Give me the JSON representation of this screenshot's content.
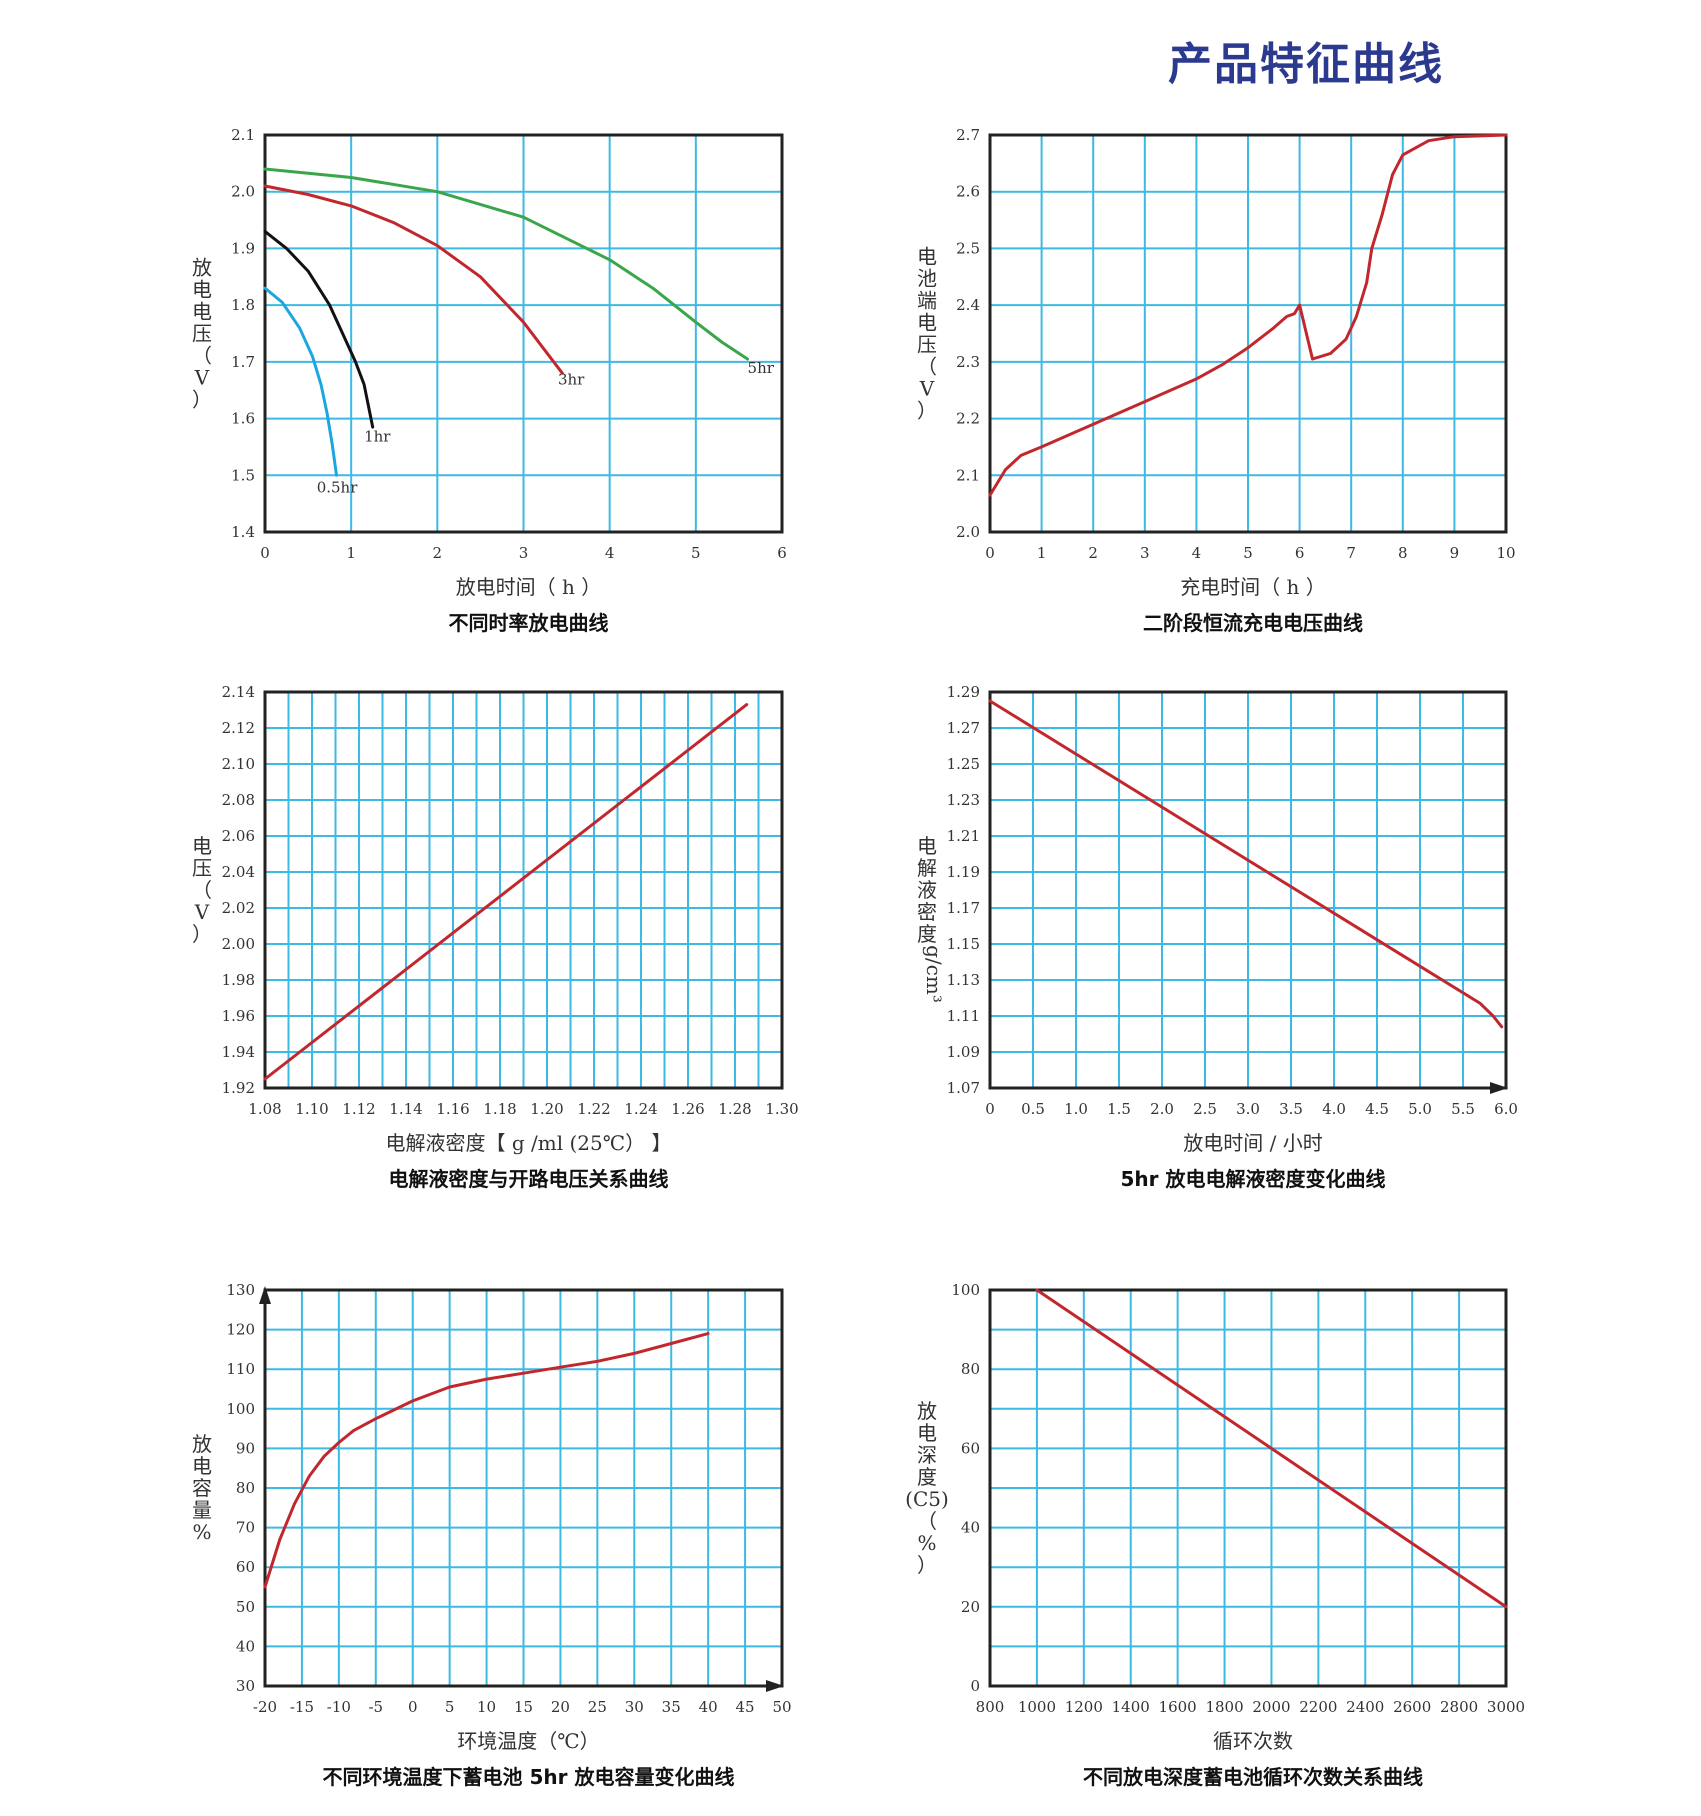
{
  "page_title": "产品特征曲线",
  "colors": {
    "title": "#2b3a8f",
    "grid": "#3db9e5",
    "frame": "#222222",
    "red": "#c1272d",
    "green": "#3aa64a",
    "black": "#111111",
    "cyan": "#1ba6e0"
  },
  "chart_data": [
    {
      "type": "line",
      "caption": "不同时率放电曲线",
      "xlabel": "放电时间（ h ）",
      "ylabel": [
        "放",
        "电",
        "电",
        "压",
        "（",
        "V",
        "）"
      ],
      "xlim": [
        0,
        6
      ],
      "ylim": [
        1.4,
        2.1
      ],
      "xticks": [
        0,
        1,
        2,
        3,
        4,
        5,
        6
      ],
      "xtick_labels": [
        "0",
        "1",
        "2",
        "3",
        "4",
        "5",
        "6"
      ],
      "yticks": [
        1.4,
        1.5,
        1.6,
        1.7,
        1.8,
        1.9,
        2.0,
        2.1
      ],
      "ytick_labels": [
        "1.4",
        "1.5",
        "1.6",
        "1.7",
        "1.8",
        "1.9",
        "2.0",
        "2.1"
      ],
      "series": [
        {
          "name": "5hr",
          "color": "#3aa64a",
          "label_at": [
            5.6,
            1.68
          ],
          "points": [
            [
              0,
              2.04
            ],
            [
              1,
              2.025
            ],
            [
              2,
              2.0
            ],
            [
              3,
              1.955
            ],
            [
              4,
              1.88
            ],
            [
              4.5,
              1.83
            ],
            [
              5,
              1.77
            ],
            [
              5.3,
              1.735
            ],
            [
              5.6,
              1.705
            ]
          ]
        },
        {
          "name": "3hr",
          "color": "#c1272d",
          "label_at": [
            3.4,
            1.66
          ],
          "points": [
            [
              0,
              2.01
            ],
            [
              0.5,
              1.995
            ],
            [
              1,
              1.975
            ],
            [
              1.5,
              1.945
            ],
            [
              2,
              1.905
            ],
            [
              2.5,
              1.85
            ],
            [
              3,
              1.77
            ],
            [
              3.2,
              1.73
            ],
            [
              3.45,
              1.68
            ]
          ]
        },
        {
          "name": "1hr",
          "color": "#111111",
          "label_at": [
            1.15,
            1.56
          ],
          "points": [
            [
              0,
              1.93
            ],
            [
              0.25,
              1.9
            ],
            [
              0.5,
              1.86
            ],
            [
              0.75,
              1.8
            ],
            [
              0.9,
              1.75
            ],
            [
              1.05,
              1.7
            ],
            [
              1.15,
              1.66
            ],
            [
              1.25,
              1.585
            ]
          ]
        },
        {
          "name": "0.5hr",
          "color": "#1ba6e0",
          "label_at": [
            0.6,
            1.47
          ],
          "points": [
            [
              0,
              1.83
            ],
            [
              0.2,
              1.805
            ],
            [
              0.4,
              1.76
            ],
            [
              0.55,
              1.71
            ],
            [
              0.65,
              1.66
            ],
            [
              0.72,
              1.61
            ],
            [
              0.78,
              1.555
            ],
            [
              0.83,
              1.5
            ]
          ]
        }
      ]
    },
    {
      "type": "line",
      "caption": "二阶段恒流充电电压曲线",
      "xlabel": "充电时间（ h ）",
      "ylabel": [
        "电",
        "池",
        "端",
        "电",
        "压",
        "（",
        "V",
        "）"
      ],
      "xlim": [
        0,
        10
      ],
      "ylim": [
        2.0,
        2.7
      ],
      "xticks": [
        0,
        1,
        2,
        3,
        4,
        5,
        6,
        7,
        8,
        9,
        10
      ],
      "xtick_labels": [
        "0",
        "1",
        "2",
        "3",
        "4",
        "5",
        "6",
        "7",
        "8",
        "9",
        "10"
      ],
      "yticks": [
        2.0,
        2.1,
        2.2,
        2.3,
        2.4,
        2.5,
        2.6,
        2.7
      ],
      "ytick_labels": [
        "2.0",
        "2.1",
        "2.2",
        "2.3",
        "2.4",
        "2.5",
        "2.6",
        "2.7"
      ],
      "series": [
        {
          "name": "",
          "color": "#c1272d",
          "points": [
            [
              0,
              2.065
            ],
            [
              0.3,
              2.11
            ],
            [
              0.6,
              2.135
            ],
            [
              1,
              2.15
            ],
            [
              2,
              2.19
            ],
            [
              3,
              2.23
            ],
            [
              4,
              2.27
            ],
            [
              4.5,
              2.295
            ],
            [
              5,
              2.325
            ],
            [
              5.5,
              2.36
            ],
            [
              5.75,
              2.38
            ],
            [
              5.9,
              2.385
            ],
            [
              6.0,
              2.4
            ],
            [
              6.25,
              2.305
            ],
            [
              6.6,
              2.315
            ],
            [
              6.9,
              2.34
            ],
            [
              7.1,
              2.38
            ],
            [
              7.3,
              2.44
            ],
            [
              7.4,
              2.5
            ],
            [
              7.6,
              2.56
            ],
            [
              7.8,
              2.63
            ],
            [
              8,
              2.665
            ],
            [
              8.5,
              2.69
            ],
            [
              9,
              2.697
            ],
            [
              10,
              2.7
            ]
          ]
        }
      ]
    },
    {
      "type": "line",
      "caption": "电解液密度与开路电压关系曲线",
      "xlabel": "电解液密度【 g /ml (25℃） 】",
      "ylabel": [
        "电",
        "压",
        "（",
        "V",
        "）"
      ],
      "xlim": [
        1.08,
        1.3
      ],
      "ylim": [
        1.92,
        2.14
      ],
      "xticks": [
        1.08,
        1.1,
        1.12,
        1.14,
        1.16,
        1.18,
        1.2,
        1.22,
        1.24,
        1.26,
        1.28,
        1.3
      ],
      "xtick_labels": [
        "1.08",
        "1.10",
        "1.12",
        "1.14",
        "1.16",
        "1.18",
        "1.20",
        "1.22",
        "1.24",
        "1.26",
        "1.28",
        "1.30"
      ],
      "yticks": [
        1.92,
        1.94,
        1.96,
        1.98,
        2.0,
        2.02,
        2.04,
        2.06,
        2.08,
        2.1,
        2.12,
        2.14
      ],
      "ytick_labels": [
        "1.92",
        "1.94",
        "1.96",
        "1.98",
        "2.00",
        "2.02",
        "2.04",
        "2.06",
        "2.08",
        "2.10",
        "2.12",
        "2.14"
      ],
      "series": [
        {
          "name": "",
          "color": "#c1272d",
          "points": [
            [
              1.08,
              1.925
            ],
            [
              1.285,
              2.133
            ]
          ]
        }
      ]
    },
    {
      "type": "line",
      "caption": "5hr 放电电解液密度变化曲线",
      "xlabel": "放电时间 / 小时",
      "ylabel": [
        "电",
        "解",
        "液",
        "密",
        "度"
      ],
      "yunit": "g/cm³",
      "xlim": [
        0,
        6.0
      ],
      "ylim": [
        1.07,
        1.29
      ],
      "xticks": [
        0,
        0.5,
        1.0,
        1.5,
        2.0,
        2.5,
        3.0,
        3.5,
        4.0,
        4.5,
        5.0,
        5.5,
        6.0
      ],
      "xtick_labels": [
        "0",
        "0.5",
        "1.0",
        "1.5",
        "2.0",
        "2.5",
        "3.0",
        "3.5",
        "4.0",
        "4.5",
        "5.0",
        "5.5",
        "6.0"
      ],
      "yticks": [
        1.07,
        1.09,
        1.11,
        1.13,
        1.15,
        1.17,
        1.19,
        1.21,
        1.23,
        1.25,
        1.27,
        1.29
      ],
      "ytick_labels": [
        "1.07",
        "1.09",
        "1.11",
        "1.13",
        "1.15",
        "1.17",
        "1.19",
        "1.21",
        "1.23",
        "1.25",
        "1.27",
        "1.29"
      ],
      "series": [
        {
          "name": "",
          "color": "#c1272d",
          "points": [
            [
              0,
              1.285
            ],
            [
              5.7,
              1.117
            ],
            [
              5.85,
              1.11
            ],
            [
              5.95,
              1.104
            ]
          ]
        }
      ]
    },
    {
      "type": "line",
      "caption": "不同环境温度下蓄电池 5hr 放电容量变化曲线",
      "xlabel": "环境温度（℃）",
      "ylabel": [
        "放",
        "电",
        "容",
        "量",
        "%"
      ],
      "xlim": [
        -20,
        50
      ],
      "ylim": [
        30,
        130
      ],
      "xticks": [
        -20,
        -15,
        -10,
        -5,
        0,
        5,
        10,
        15,
        20,
        25,
        30,
        35,
        40,
        45,
        50
      ],
      "xtick_labels": [
        "-20",
        "-15",
        "-10",
        "-5",
        "0",
        "5",
        "10",
        "15",
        "20",
        "25",
        "30",
        "35",
        "40",
        "45",
        "50"
      ],
      "yticks": [
        30,
        40,
        50,
        60,
        70,
        80,
        90,
        100,
        110,
        120,
        130
      ],
      "ytick_labels": [
        "30",
        "40",
        "50",
        "60",
        "70",
        "80",
        "90",
        "100",
        "110",
        "120",
        "130"
      ],
      "series": [
        {
          "name": "",
          "color": "#c1272d",
          "points": [
            [
              -20,
              55
            ],
            [
              -18,
              67
            ],
            [
              -16,
              76
            ],
            [
              -14,
              83
            ],
            [
              -12,
              88
            ],
            [
              -10,
              91.5
            ],
            [
              -8,
              94.5
            ],
            [
              -5,
              97.5
            ],
            [
              0,
              102
            ],
            [
              5,
              105.5
            ],
            [
              10,
              107.5
            ],
            [
              15,
              109
            ],
            [
              20,
              110.5
            ],
            [
              25,
              112
            ],
            [
              30,
              114
            ],
            [
              35,
              116.5
            ],
            [
              40,
              119
            ]
          ]
        }
      ]
    },
    {
      "type": "line",
      "caption": "不同放电深度蓄电池循环次数关系曲线",
      "xlabel": "循环次数",
      "ylabel": [
        "放",
        "电",
        "深",
        "度",
        "(C5)",
        "（",
        "%",
        "）"
      ],
      "xlim": [
        800,
        3000
      ],
      "ylim": [
        0,
        100
      ],
      "xticks": [
        800,
        1000,
        1200,
        1400,
        1600,
        1800,
        2000,
        2200,
        2400,
        2600,
        2800,
        3000
      ],
      "xtick_labels": [
        "800",
        "1000",
        "1200",
        "1400",
        "1600",
        "1800",
        "2000",
        "2200",
        "2400",
        "2600",
        "2800",
        "3000"
      ],
      "yticks": [
        0,
        20,
        40,
        60,
        80,
        100
      ],
      "ytick_labels": [
        "0",
        "20",
        "40",
        "60",
        "80",
        "100"
      ],
      "series": [
        {
          "name": "",
          "color": "#c1272d",
          "points": [
            [
              1000,
              100
            ],
            [
              3000,
              20
            ]
          ]
        }
      ]
    }
  ]
}
